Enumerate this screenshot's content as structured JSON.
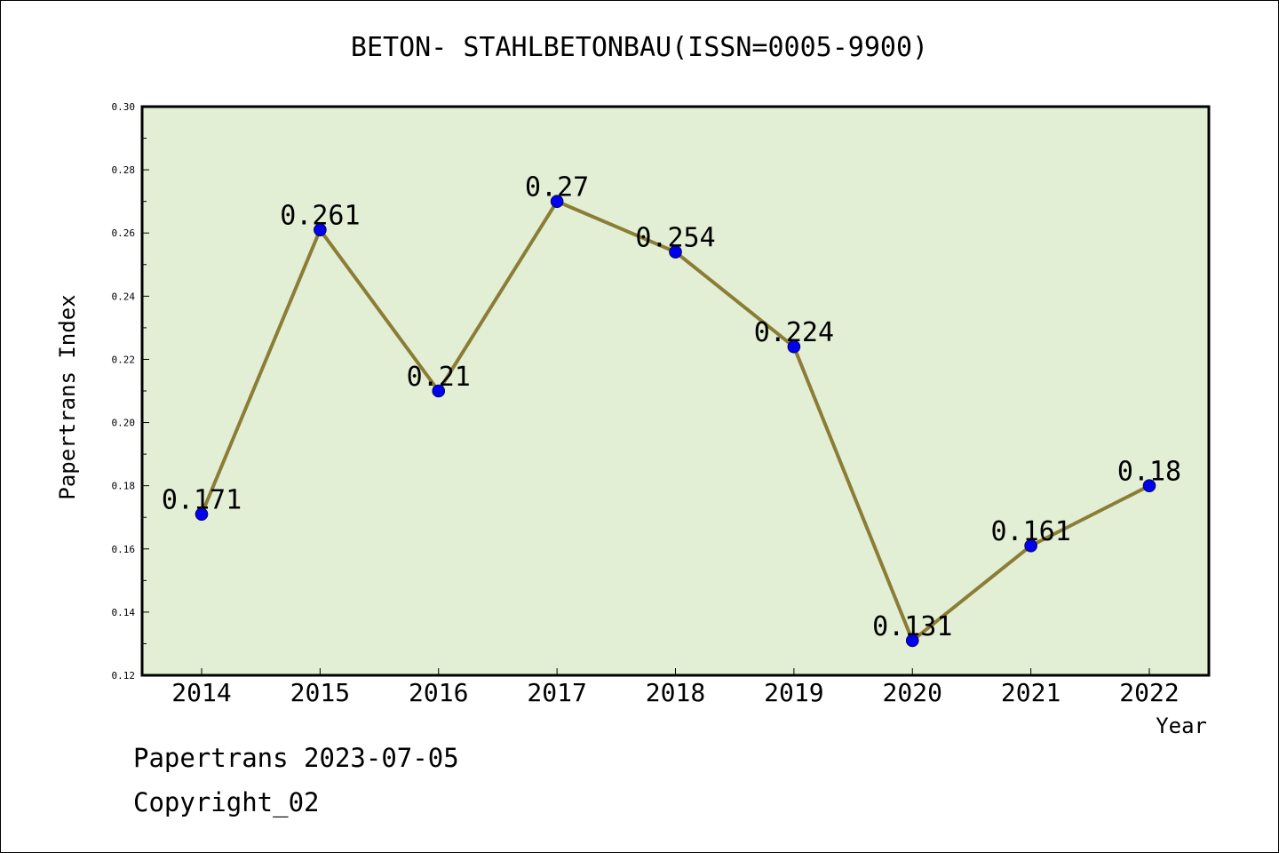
{
  "chart_data": {
    "type": "line",
    "title": "BETON- STAHLBETONBAU(ISSN=0005-9900)",
    "xlabel": "Year",
    "ylabel": "Papertrans Index",
    "categories": [
      "2014",
      "2015",
      "2016",
      "2017",
      "2018",
      "2019",
      "2020",
      "2021",
      "2022"
    ],
    "series": [
      {
        "values": [
          0.171,
          0.261,
          0.21,
          0.27,
          0.254,
          0.224,
          0.131,
          0.161,
          0.18
        ],
        "labels": [
          "0.171",
          "0.261",
          "0.21",
          "0.27",
          "0.254",
          "0.224",
          "0.131",
          "0.161",
          "0.18"
        ]
      }
    ],
    "ylim": [
      0.12,
      0.3
    ],
    "yticks": [
      "0.12",
      "0.14",
      "0.16",
      "0.18",
      "0.20",
      "0.22",
      "0.24",
      "0.26",
      "0.28",
      "0.30"
    ],
    "grid": false,
    "colors": {
      "plot_background": "#e2efd5",
      "line": "#8b7d35",
      "marker": "#0000ee"
    }
  },
  "footer": {
    "line1": "Papertrans 2023-07-05",
    "line2": "Copyright_02"
  }
}
